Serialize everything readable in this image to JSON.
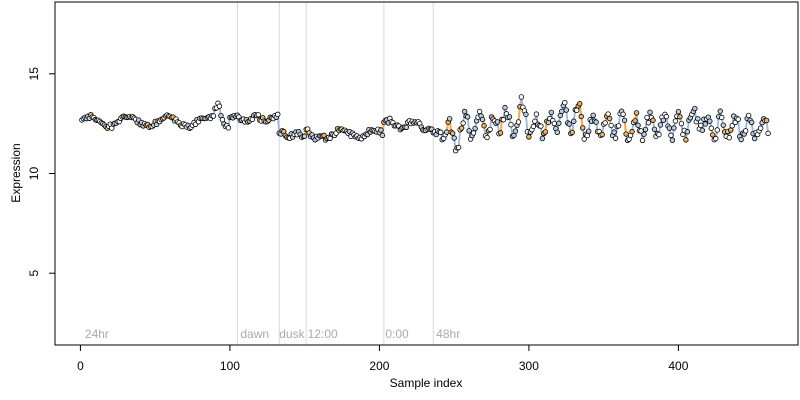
{
  "chart_data": {
    "type": "scatter",
    "title": "",
    "xlabel": "Sample index",
    "ylabel": "Expression",
    "xlim": [
      -17,
      480
    ],
    "ylim": [
      1.4,
      18.6
    ],
    "xticks": [
      0,
      100,
      200,
      300,
      400
    ],
    "yticks": [
      5,
      10,
      15
    ],
    "grid": false,
    "legend": "none",
    "colors": {
      "point_stroke": "#000000",
      "point_fill_light": "#ffffff",
      "point_fill_blue": "#b7cde6",
      "point_fill_orange": "#f0b060",
      "connector_blue": "#9ab6dc",
      "connector_orange": "#f2b04a",
      "divider": "#d9d9d9",
      "annotation_text": "#aaaaaa"
    },
    "dividers": [
      105,
      133,
      151,
      203,
      236
    ],
    "annotations": [
      {
        "x": 3,
        "label": "24hr"
      },
      {
        "x": 107,
        "label": "dawn"
      },
      {
        "x": 133,
        "label": "dusk"
      },
      {
        "x": 152,
        "label": "12:00"
      },
      {
        "x": 204,
        "label": "0:00"
      },
      {
        "x": 238,
        "label": "48hr"
      }
    ],
    "series": [
      {
        "segments": [
          {
            "x_start": 1,
            "x_end": 99,
            "base": 12.6,
            "amp": 0.25,
            "period": 26,
            "phase": 0.3,
            "noise": 0.12
          },
          {
            "x_start": 100,
            "x_end": 132,
            "base": 12.75,
            "amp": 0.12,
            "period": 14,
            "phase": 0.1,
            "noise": 0.12
          },
          {
            "x_start": 133,
            "x_end": 150,
            "base": 11.95,
            "amp": 0.08,
            "period": 10,
            "phase": 0.5,
            "noise": 0.12
          },
          {
            "x_start": 151,
            "x_end": 202,
            "base": 12.0,
            "amp": 0.2,
            "period": 22,
            "phase": 1.0,
            "noise": 0.12
          },
          {
            "x_start": 203,
            "x_end": 235,
            "base": 12.45,
            "amp": 0.2,
            "period": 16,
            "phase": 0.2,
            "noise": 0.12
          },
          {
            "x_start": 236,
            "x_end": 460,
            "base": 12.35,
            "amp": 0.5,
            "period": 9.5,
            "phase": 0.0,
            "noise": 0.3
          }
        ],
        "bumps": [
          {
            "x": 92,
            "dy": 0.9
          },
          {
            "x": 156,
            "dy": -0.4
          },
          {
            "x": 238,
            "dy": -0.8
          },
          {
            "x": 250,
            "dy": -0.9
          },
          {
            "x": 283,
            "dy": 0.8
          },
          {
            "x": 296,
            "dy": 0.8
          },
          {
            "x": 322,
            "dy": 0.9
          },
          {
            "x": 332,
            "dy": 0.8
          },
          {
            "x": 412,
            "dy": 0.6
          }
        ]
      }
    ]
  }
}
